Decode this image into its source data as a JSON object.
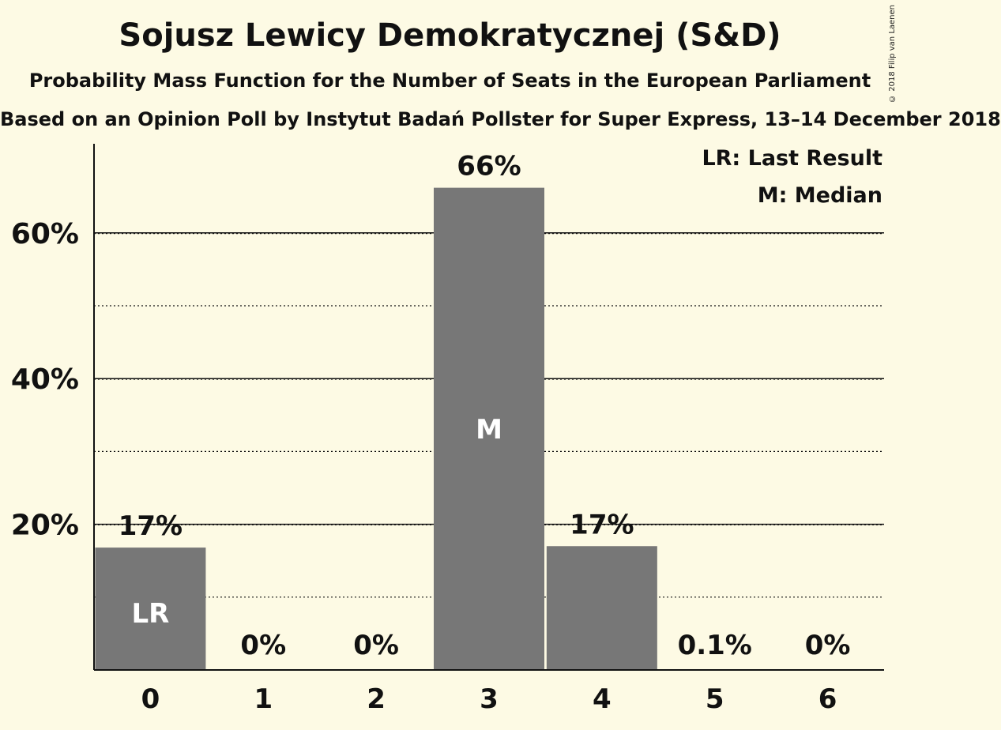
{
  "title": "Sojusz Lewicy Demokratycznej (S&D)",
  "subtitle": "Probability Mass Function for the Number of Seats in the European Parliament",
  "subtitle2": "Based on an Opinion Poll by Instytut Badań Pollster for Super Express, 13–14 December 2018",
  "copyright": "© 2018 Filip van Laenen",
  "legend": {
    "lr": "LR: Last Result",
    "median": "M: Median"
  },
  "colors": {
    "background": "#fdfae4",
    "bar": "#777777",
    "axis": "#111111"
  },
  "chart_data": {
    "type": "bar",
    "categories": [
      "0",
      "1",
      "2",
      "3",
      "4",
      "5",
      "6"
    ],
    "values": [
      16.8,
      0,
      0,
      66.2,
      17.0,
      0.1,
      0
    ],
    "value_labels": [
      "17%",
      "0%",
      "0%",
      "66%",
      "17%",
      "0.1%",
      "0%"
    ],
    "bar_markers": [
      "LR",
      "",
      "",
      "M",
      "",
      "",
      ""
    ],
    "yticks": [
      20,
      40,
      60
    ],
    "ytick_labels": [
      "20%",
      "40%",
      "60%"
    ],
    "minor_gridlines": [
      10,
      30,
      50
    ],
    "ylim": [
      0,
      72
    ],
    "grid": true,
    "legend_position": "top-right"
  }
}
